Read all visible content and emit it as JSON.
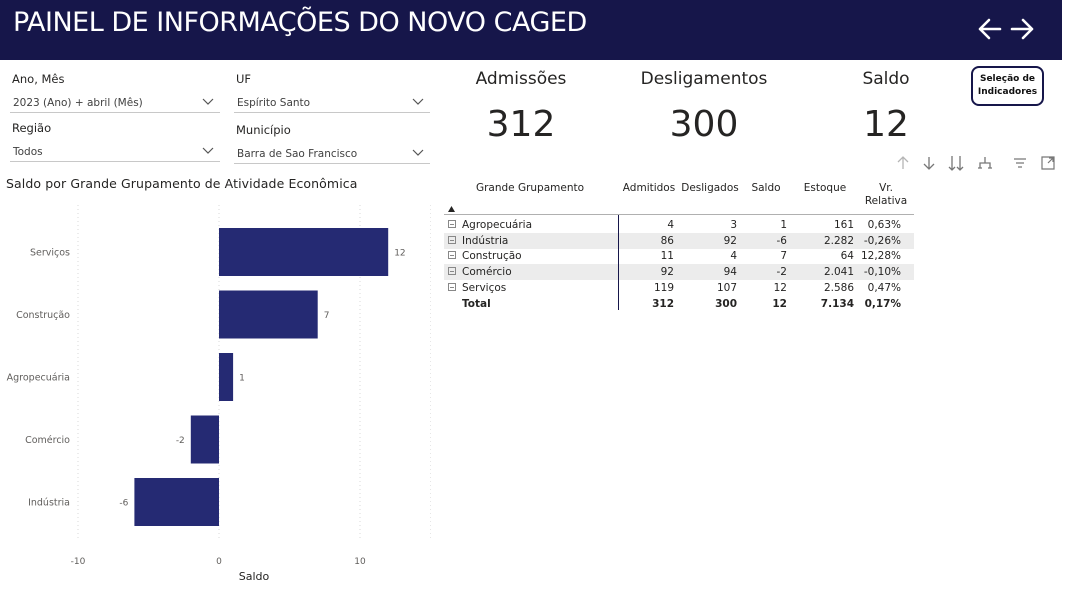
{
  "header": {
    "title": "PAINEL DE INFORMAÇÕES DO NOVO CAGED",
    "back_icon": "arrow-left-icon",
    "forward_icon": "arrow-right-icon"
  },
  "filters": {
    "ano_mes": {
      "label": "Ano, Mês",
      "value": "2023 (Ano) + abril (Mês)"
    },
    "uf": {
      "label": "UF",
      "value": "Espírito Santo"
    },
    "regiao": {
      "label": "Região",
      "value": "Todos"
    },
    "municipio": {
      "label": "Município",
      "value": "Barra de Sao Francisco"
    }
  },
  "kpis": {
    "admissoes": {
      "label": "Admissões",
      "value": "312"
    },
    "desligamentos": {
      "label": "Desligamentos",
      "value": "300"
    },
    "saldo": {
      "label": "Saldo",
      "value": "12"
    }
  },
  "selection_button": {
    "line1": "Seleção de",
    "line2": "Indicadores"
  },
  "visual_icons": [
    "drill-up-icon",
    "drill-down-icon",
    "expand-all-down-icon",
    "hierarchy-icon",
    "filter-icon",
    "focus-mode-icon"
  ],
  "colors": {
    "header_bg": "#16164a",
    "bar": "#252a73",
    "row_alt": "#ececec"
  },
  "chart_data": {
    "type": "bar",
    "orientation": "horizontal",
    "title": "Saldo por Grande Grupamento de Atividade Econômica",
    "categories": [
      "Serviços",
      "Construção",
      "Agropecuária",
      "Comércio",
      "Indústria"
    ],
    "values": [
      12,
      7,
      1,
      -2,
      -6
    ],
    "xlabel": "Saldo",
    "ylabel": "",
    "xlim": [
      -10,
      15
    ],
    "xticks": [
      -10,
      0,
      10
    ],
    "grid": true
  },
  "table": {
    "headers": [
      "Grande Grupamento",
      "Admitidos",
      "Desligados",
      "Saldo",
      "Estoque",
      "Vr. Relativa"
    ],
    "rows": [
      {
        "name": "Agropecuária",
        "admitidos": "4",
        "desligados": "3",
        "saldo": "1",
        "estoque": "161",
        "vr": "0,63%"
      },
      {
        "name": "Indústria",
        "admitidos": "86",
        "desligados": "92",
        "saldo": "-6",
        "estoque": "2.282",
        "vr": "-0,26%"
      },
      {
        "name": "Construção",
        "admitidos": "11",
        "desligados": "4",
        "saldo": "7",
        "estoque": "64",
        "vr": "12,28%"
      },
      {
        "name": "Comércio",
        "admitidos": "92",
        "desligados": "94",
        "saldo": "-2",
        "estoque": "2.041",
        "vr": "-0,10%"
      },
      {
        "name": "Serviços",
        "admitidos": "119",
        "desligados": "107",
        "saldo": "12",
        "estoque": "2.586",
        "vr": "0,47%"
      }
    ],
    "total": {
      "name": "Total",
      "admitidos": "312",
      "desligados": "300",
      "saldo": "12",
      "estoque": "7.134",
      "vr": "0,17%"
    }
  }
}
